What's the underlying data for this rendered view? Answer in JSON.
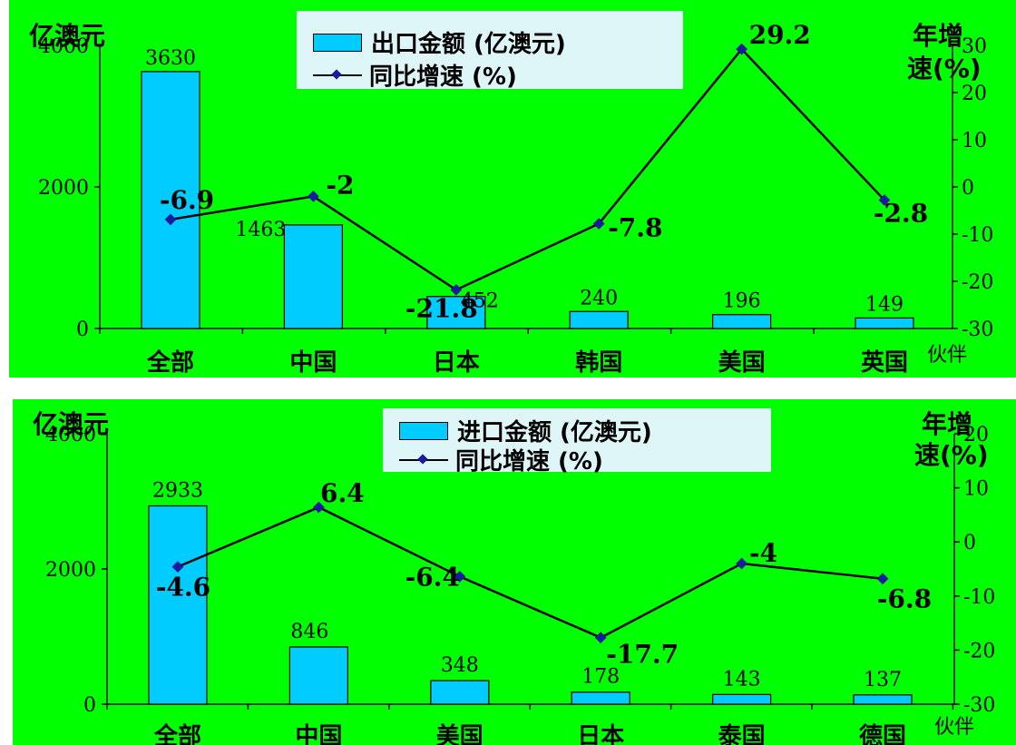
{
  "chart_data": [
    {
      "type": "bar",
      "categories": [
        "全部",
        "中国",
        "日本",
        "韩国",
        "美国",
        "英国"
      ],
      "series": [
        {
          "name": "出口金额 (亿澳元)",
          "type": "bar",
          "axis": "left",
          "values": [
            3630,
            1463,
            452,
            240,
            196,
            149
          ]
        },
        {
          "name": "同比增速 (%)",
          "type": "line",
          "axis": "right",
          "values": [
            -6.9,
            -2,
            -21.8,
            -7.8,
            29.2,
            -2.8
          ]
        }
      ],
      "ylabel": "亿澳元",
      "y2label": "年增速(%)",
      "xunit": "伙伴",
      "ylim": [
        0,
        4000
      ],
      "y2lim": [
        -30,
        30
      ],
      "yticks": [
        "0",
        "2000",
        "4000"
      ],
      "y2ticks": [
        "-30",
        "-20",
        "-10",
        "0",
        "10",
        "20",
        "30"
      ],
      "legend_placement": "top-center",
      "grid": false
    },
    {
      "type": "bar",
      "categories": [
        "全部",
        "中国",
        "美国",
        "日本",
        "泰国",
        "德国"
      ],
      "series": [
        {
          "name": "进口金额 (亿澳元)",
          "type": "bar",
          "axis": "left",
          "values": [
            2933,
            846,
            348,
            178,
            143,
            137
          ]
        },
        {
          "name": "同比增速 (%)",
          "type": "line",
          "axis": "right",
          "values": [
            -4.6,
            6.4,
            -6.4,
            -17.7,
            -4,
            -6.8
          ]
        }
      ],
      "ylabel": "亿澳元",
      "y2label": "年增速(%)",
      "xunit": "伙伴",
      "ylim": [
        0,
        4000
      ],
      "y2lim": [
        -30,
        20
      ],
      "yticks": [
        "0",
        "2000",
        "4000"
      ],
      "y2ticks": [
        "-30",
        "-20",
        "-10",
        "0",
        "10",
        "20"
      ],
      "legend_placement": "top-center",
      "grid": false
    }
  ],
  "legend1": {
    "bar": "出口金额 (亿澳元)",
    "line": "同比增速 (%)"
  },
  "legend2": {
    "bar": "进口金额 (亿澳元)",
    "line": "同比增速 (%)"
  },
  "axis_titles": {
    "left": "亿澳元",
    "right_line1": "年增",
    "right_line2": "速(%)",
    "x_unit": "伙伴"
  },
  "colors": {
    "background": "#00ff00",
    "bar": "#00ccff",
    "line": "#000000",
    "marker": "#1a1aa0",
    "legend_bg": "#dff6f8"
  }
}
